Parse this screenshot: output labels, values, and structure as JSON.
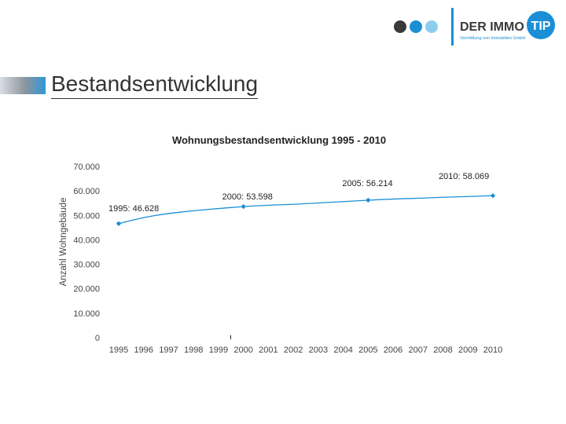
{
  "header": {
    "title": "Bestandsentwicklung",
    "logo": {
      "brand": "DER IMMO",
      "badge": "TIP",
      "tagline": "Vermittlung von Immobilien GmbH",
      "dot_colors": [
        "#3a3a3a",
        "#1a8fd6",
        "#8ccdf0"
      ],
      "brand_color": "#3a3a3a",
      "accent_color": "#1a8fd6"
    },
    "accent_bar_color": "#2f97d6"
  },
  "chart_data": {
    "type": "line",
    "title": "Wohnungsbestandsentwicklung 1995 - 2010",
    "xlabel": "",
    "ylabel": "Anzahl Wohngebäude",
    "ylim": [
      0,
      70000
    ],
    "yticks": [
      "0",
      "10.000",
      "20.000",
      "30.000",
      "40.000",
      "50.000",
      "60.000",
      "70.000"
    ],
    "categories": [
      "1995",
      "1996",
      "1997",
      "1998",
      "1999",
      "2000",
      "2001",
      "2002",
      "2003",
      "2004",
      "2005",
      "2006",
      "2007",
      "2008",
      "2009",
      "2010"
    ],
    "series": [
      {
        "values": [
          46628,
          49200,
          50800,
          51900,
          52800,
          53598,
          54200,
          54500,
          55100,
          55600,
          56214,
          56700,
          57000,
          57400,
          57700,
          58069
        ],
        "color": "#1a8fd6"
      }
    ],
    "markers_at": [
      "1995",
      "2000",
      "2005",
      "2010"
    ],
    "data_labels": [
      {
        "category": "1995",
        "text": "1995: 46.628"
      },
      {
        "category": "2000",
        "text": "2000: 53.598"
      },
      {
        "category": "2005",
        "text": "2005: 56.214"
      },
      {
        "category": "2010",
        "text": "2010: 58.069"
      }
    ],
    "grid": false,
    "legend": "none"
  }
}
